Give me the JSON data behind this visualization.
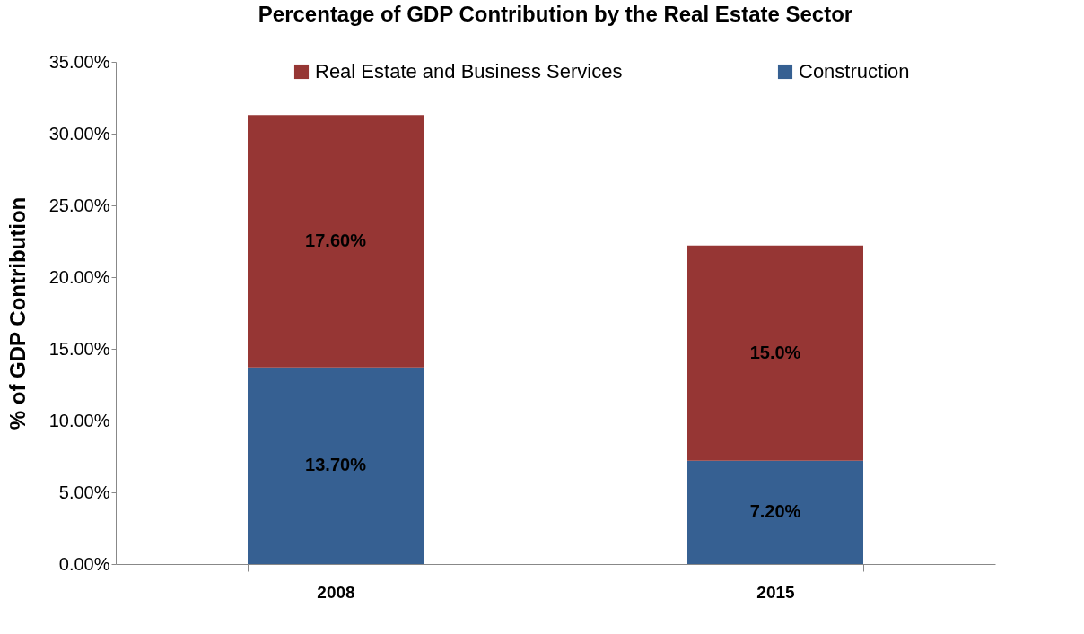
{
  "chart_data": {
    "type": "bar",
    "title": "Percentage of GDP Contribution by the Real Estate Sector",
    "ylabel": "% of GDP Contribution",
    "categories": [
      "2008",
      "2015"
    ],
    "stacked": true,
    "series": [
      {
        "name": "Construction",
        "color": "#366092",
        "values": [
          13.7,
          7.2
        ],
        "value_labels": [
          "13.70%",
          "7.20%"
        ]
      },
      {
        "name": "Real Estate and Business Services",
        "color": "#963634",
        "values": [
          17.6,
          15.0
        ],
        "value_labels": [
          "17.60%",
          "15.0%"
        ]
      }
    ],
    "ylim": [
      0,
      35
    ],
    "yticks": [
      {
        "value": 0,
        "label": "0.00%"
      },
      {
        "value": 5,
        "label": "5.00%"
      },
      {
        "value": 10,
        "label": "10.00%"
      },
      {
        "value": 15,
        "label": "15.00%"
      },
      {
        "value": 20,
        "label": "20.00%"
      },
      {
        "value": 25,
        "label": "25.00%"
      },
      {
        "value": 30,
        "label": "30.00%"
      },
      {
        "value": 35,
        "label": "35.00%"
      }
    ],
    "grid": false,
    "legend": "top"
  }
}
